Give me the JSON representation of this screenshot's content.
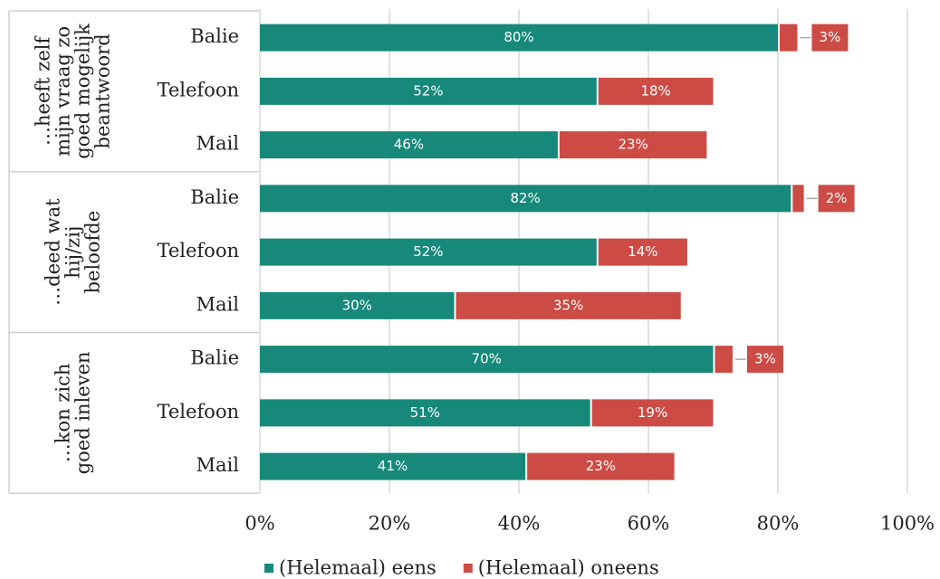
{
  "chart_data": {
    "type": "stacked_barh",
    "groups": [
      {
        "label_lines": [
          "…heeft zelf",
          "mijn vraag zo",
          "goed mogelijk",
          "beantwoord"
        ]
      },
      {
        "label_lines": [
          "…deed wat",
          "hij/zij",
          "beloofde"
        ]
      },
      {
        "label_lines": [
          "…kon zich",
          "goed inleven"
        ]
      }
    ],
    "categories": [
      "Balie",
      "Telefoon",
      "Mail",
      "Balie",
      "Telefoon",
      "Mail",
      "Balie",
      "Telefoon",
      "Mail"
    ],
    "series": [
      {
        "name": "(Helemaal) eens",
        "color": "#16897a",
        "values": [
          80,
          52,
          46,
          82,
          52,
          30,
          70,
          51,
          41
        ],
        "value_labels": [
          "80%",
          "52%",
          "46%",
          "82%",
          "52%",
          "30%",
          "70%",
          "51%",
          "41%"
        ]
      },
      {
        "name": "(Helemaal) oneens",
        "color": "#cc4b45",
        "values": [
          3,
          18,
          23,
          2,
          14,
          35,
          3,
          19,
          23
        ],
        "value_labels": [
          "3%",
          "18%",
          "23%",
          "2%",
          "14%",
          "35%",
          "3%",
          "19%",
          "23%"
        ]
      }
    ],
    "xlim": [
      0,
      100
    ],
    "xticks": [
      {
        "value": 0,
        "label": "0%"
      },
      {
        "value": 20,
        "label": "20%"
      },
      {
        "value": 40,
        "label": "40%"
      },
      {
        "value": 60,
        "label": "60%"
      },
      {
        "value": 80,
        "label": "80%"
      },
      {
        "value": 100,
        "label": "100%"
      }
    ],
    "grid": true
  }
}
